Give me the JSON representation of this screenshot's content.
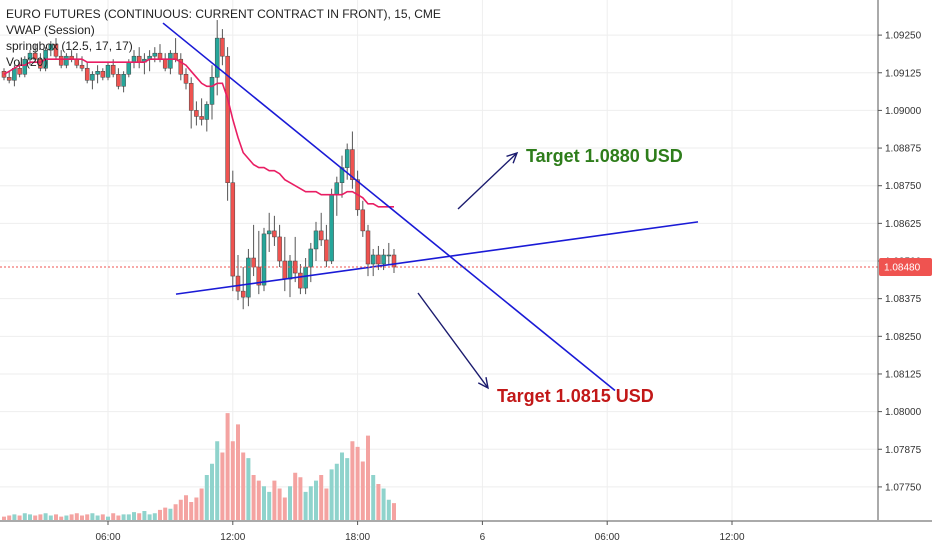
{
  "legend": {
    "title": "EURO FUTURES (CONTINUOUS: CURRENT CONTRACT IN FRONT), 15, CME",
    "vwap": "VWAP (Session)",
    "springbox": "springbox (12.5, 17, 17)",
    "vol": "Vol (20)"
  },
  "colors": {
    "up": "#26a69a",
    "down": "#ef5350",
    "vol_up": "#8fd3cc",
    "vol_down": "#f4a3a1",
    "vwap": "#e91e63",
    "trendline": "#1a1ad6",
    "arrow": "#1b1b6e",
    "target_up": "#2e7d1b",
    "target_down": "#c21818",
    "price_tag": "#ef5350"
  },
  "chart_data": {
    "type": "candlestick",
    "ylim": [
      1.0768,
      1.0934
    ],
    "y_ticks": [
      "1.09250",
      "1.09125",
      "1.09000",
      "1.08875",
      "1.08750",
      "1.08625",
      "1.08500",
      "1.08375",
      "1.08250",
      "1.08125",
      "1.08000",
      "1.07875",
      "1.07750"
    ],
    "x_ticks": [
      "06:00",
      "12:00",
      "18:00",
      "6",
      "06:00",
      "12:00"
    ],
    "last_price": "1.08480",
    "candles": [
      [
        1.0913,
        1.0914,
        1.091,
        1.0911
      ],
      [
        1.0911,
        1.0913,
        1.0909,
        1.091
      ],
      [
        1.091,
        1.0915,
        1.0908,
        1.0914
      ],
      [
        1.0914,
        1.0916,
        1.0911,
        1.0912
      ],
      [
        1.0912,
        1.0918,
        1.0911,
        1.0917
      ],
      [
        1.0917,
        1.092,
        1.0915,
        1.0919
      ],
      [
        1.0919,
        1.0922,
        1.0916,
        1.0917
      ],
      [
        1.0917,
        1.0919,
        1.0913,
        1.0914
      ],
      [
        1.0914,
        1.0921,
        1.0913,
        1.092
      ],
      [
        1.092,
        1.0923,
        1.0918,
        1.0922
      ],
      [
        1.0922,
        1.0924,
        1.0917,
        1.0918
      ],
      [
        1.0918,
        1.092,
        1.0914,
        1.0915
      ],
      [
        1.0915,
        1.0919,
        1.0914,
        1.0918
      ],
      [
        1.0918,
        1.092,
        1.0916,
        1.0917
      ],
      [
        1.0917,
        1.0919,
        1.0914,
        1.0915
      ],
      [
        1.0915,
        1.0918,
        1.0913,
        1.0914
      ],
      [
        1.0914,
        1.0916,
        1.0909,
        1.091
      ],
      [
        1.091,
        1.0913,
        1.0907,
        1.0912
      ],
      [
        1.0912,
        1.0915,
        1.0909,
        1.0913
      ],
      [
        1.0913,
        1.0914,
        1.091,
        1.0911
      ],
      [
        1.0911,
        1.0916,
        1.091,
        1.0915
      ],
      [
        1.0915,
        1.0917,
        1.0911,
        1.0912
      ],
      [
        1.0912,
        1.0914,
        1.0907,
        1.0908
      ],
      [
        1.0908,
        1.0913,
        1.0906,
        1.0912
      ],
      [
        1.0912,
        1.0917,
        1.0911,
        1.0916
      ],
      [
        1.0916,
        1.092,
        1.0914,
        1.0918
      ],
      [
        1.0918,
        1.0921,
        1.0914,
        1.0916
      ],
      [
        1.0916,
        1.0919,
        1.0912,
        1.0917
      ],
      [
        1.0917,
        1.092,
        1.0913,
        1.0918
      ],
      [
        1.0918,
        1.0921,
        1.0916,
        1.0919
      ],
      [
        1.0919,
        1.0922,
        1.0916,
        1.0917
      ],
      [
        1.0917,
        1.0919,
        1.0913,
        1.0914
      ],
      [
        1.0914,
        1.092,
        1.0912,
        1.0919
      ],
      [
        1.0919,
        1.0924,
        1.0916,
        1.0917
      ],
      [
        1.0917,
        1.0919,
        1.091,
        1.0912
      ],
      [
        1.0912,
        1.0914,
        1.0907,
        1.0909
      ],
      [
        1.0909,
        1.0911,
        1.0894,
        1.09
      ],
      [
        1.09,
        1.0903,
        1.0895,
        1.0898
      ],
      [
        1.0898,
        1.0904,
        1.0895,
        1.0897
      ],
      [
        1.0897,
        1.0903,
        1.0893,
        1.0902
      ],
      [
        1.0902,
        1.0915,
        1.0897,
        1.0911
      ],
      [
        1.0911,
        1.093,
        1.0905,
        1.0924
      ],
      [
        1.0924,
        1.0927,
        1.0915,
        1.0918
      ],
      [
        1.0918,
        1.0921,
        1.087,
        1.0876
      ],
      [
        1.0876,
        1.088,
        1.084,
        1.0845
      ],
      [
        1.0845,
        1.0852,
        1.0837,
        1.084
      ],
      [
        1.084,
        1.0848,
        1.0834,
        1.0838
      ],
      [
        1.0838,
        1.0854,
        1.0835,
        1.0851
      ],
      [
        1.0851,
        1.0862,
        1.0845,
        1.0848
      ],
      [
        1.0848,
        1.086,
        1.0839,
        1.0842
      ],
      [
        1.0842,
        1.0861,
        1.084,
        1.0859
      ],
      [
        1.0859,
        1.0866,
        1.0853,
        1.086
      ],
      [
        1.086,
        1.0865,
        1.0855,
        1.0858
      ],
      [
        1.0858,
        1.0862,
        1.0848,
        1.085
      ],
      [
        1.085,
        1.0858,
        1.084,
        1.0844
      ],
      [
        1.0844,
        1.0852,
        1.0838,
        1.085
      ],
      [
        1.085,
        1.0858,
        1.0843,
        1.0846
      ],
      [
        1.0846,
        1.0849,
        1.0839,
        1.0841
      ],
      [
        1.0841,
        1.0851,
        1.0839,
        1.0848
      ],
      [
        1.0848,
        1.0856,
        1.0843,
        1.0854
      ],
      [
        1.0854,
        1.0863,
        1.085,
        1.086
      ],
      [
        1.086,
        1.0866,
        1.0855,
        1.0857
      ],
      [
        1.0857,
        1.0862,
        1.0848,
        1.085
      ],
      [
        1.085,
        1.0874,
        1.0849,
        1.0872
      ],
      [
        1.0872,
        1.0878,
        1.0865,
        1.0876
      ],
      [
        1.0876,
        1.0885,
        1.0871,
        1.0881
      ],
      [
        1.0881,
        1.0889,
        1.0877,
        1.0887
      ],
      [
        1.0887,
        1.0893,
        1.0874,
        1.0877
      ],
      [
        1.0877,
        1.088,
        1.0865,
        1.0867
      ],
      [
        1.0867,
        1.087,
        1.0858,
        1.086
      ],
      [
        1.086,
        1.0862,
        1.0845,
        1.0849
      ],
      [
        1.0849,
        1.0854,
        1.0845,
        1.0852
      ],
      [
        1.0852,
        1.0855,
        1.0847,
        1.0849
      ],
      [
        1.0849,
        1.0854,
        1.0847,
        1.0852
      ],
      [
        1.0852,
        1.0856,
        1.0849,
        1.0852
      ],
      [
        1.0852,
        1.0854,
        1.0846,
        1.0848
      ]
    ],
    "vwap": [
      1.0912,
      1.0913,
      1.0914,
      1.0915,
      1.0915,
      1.0916,
      1.0916,
      1.0916,
      1.0917,
      1.0917,
      1.0917,
      1.0917,
      1.0917,
      1.0917,
      1.0917,
      1.0917,
      1.0916,
      1.0916,
      1.0916,
      1.0916,
      1.0916,
      1.0916,
      1.0916,
      1.0916,
      1.0916,
      1.0916,
      1.0916,
      1.0916,
      1.0917,
      1.0917,
      1.0917,
      1.0917,
      1.0917,
      1.0917,
      1.0916,
      1.0915,
      1.0913,
      1.0911,
      1.0909,
      1.0908,
      1.0908,
      1.0909,
      1.0909,
      1.0904,
      1.0897,
      1.0891,
      1.0886,
      1.0884,
      1.0882,
      1.0881,
      1.0881,
      1.088,
      1.088,
      1.0879,
      1.0877,
      1.0876,
      1.0875,
      1.0874,
      1.0873,
      1.0873,
      1.0873,
      1.0872,
      1.0872,
      1.0872,
      1.0872,
      1.0872,
      1.0873,
      1.0873,
      1.0872,
      1.0871,
      1.0869,
      1.0869,
      1.0868,
      1.0868,
      1.0868,
      1.0868
    ],
    "volumes": [
      3,
      4,
      5,
      4,
      6,
      5,
      4,
      5,
      6,
      4,
      5,
      3,
      4,
      5,
      6,
      4,
      5,
      6,
      4,
      5,
      3,
      6,
      4,
      5,
      5,
      7,
      6,
      8,
      5,
      6,
      9,
      11,
      10,
      14,
      18,
      22,
      16,
      20,
      28,
      40,
      50,
      70,
      60,
      95,
      70,
      85,
      60,
      55,
      40,
      35,
      30,
      25,
      35,
      28,
      20,
      30,
      42,
      38,
      25,
      30,
      35,
      40,
      28,
      45,
      50,
      60,
      55,
      70,
      65,
      52,
      75,
      40,
      32,
      28,
      18,
      15
    ],
    "volume_max": 120
  },
  "annotations": {
    "target_up": "Target 1.0880 USD",
    "target_down": "Target 1.0815 USD"
  },
  "drawings": {
    "falling_line": [
      [
        1.0929,
        1.0807
      ]
    ],
    "rising_line": [
      [
        1.0839,
        1.0863
      ]
    ]
  }
}
